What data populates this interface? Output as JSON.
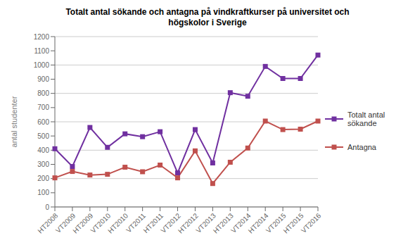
{
  "chart_data": {
    "type": "line",
    "title": "Totalt antal sökande och antagna på vindkraftkurser på universitet och\nhögskolor i Sverige",
    "ylabel": "antal studenter",
    "categories": [
      "HT2008",
      "VT2009",
      "HT2009",
      "VT2010",
      "HT2010",
      "VT2011",
      "HT2011",
      "VT2012",
      "HT2012",
      "VT2013",
      "HT2013",
      "VT2014",
      "HT2014",
      "VT2015",
      "HT2015",
      "VT2016"
    ],
    "series": [
      {
        "name": "Totalt antal\nsökande",
        "color": "#7030A0",
        "marker": "square",
        "values": [
          410,
          285,
          560,
          420,
          515,
          495,
          530,
          240,
          545,
          310,
          805,
          780,
          990,
          905,
          905,
          1070
        ]
      },
      {
        "name": "Antagna",
        "color": "#C0504D",
        "marker": "square",
        "values": [
          205,
          250,
          225,
          230,
          280,
          248,
          295,
          205,
          395,
          165,
          315,
          415,
          605,
          545,
          548,
          605
        ]
      }
    ],
    "ylim": [
      0,
      1200
    ],
    "yticks": [
      0,
      100,
      200,
      300,
      400,
      500,
      600,
      700,
      800,
      900,
      1000,
      1100,
      1200
    ],
    "grid": true,
    "legend": "right"
  }
}
